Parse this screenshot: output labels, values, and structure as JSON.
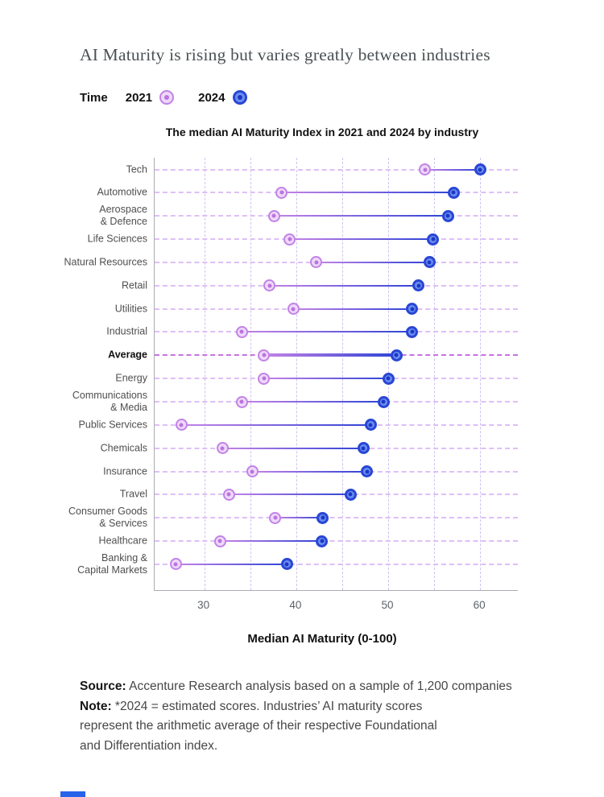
{
  "title": "AI Maturity is rising but varies greatly between industries",
  "legend": {
    "label": "Time",
    "items": [
      {
        "label": "2021",
        "series": "2021"
      },
      {
        "label": "2024",
        "series": "2024"
      }
    ]
  },
  "chart_data": {
    "type": "dumbbell",
    "title": "The median AI Maturity Index in 2021 and 2024 by industry",
    "xlabel": "Median AI Maturity (0-100)",
    "xlim": [
      24.6,
      64.1
    ],
    "xticks": [
      30,
      40,
      50,
      60
    ],
    "gridlines": [
      30,
      35,
      40,
      45,
      50,
      55,
      60
    ],
    "grid": "dashed",
    "legend_position": "top-left",
    "series": [
      "2021",
      "2024"
    ],
    "rows": [
      {
        "label": [
          "Tech"
        ],
        "v2021": 54.0,
        "v2024": 60.0,
        "bold": false
      },
      {
        "label": [
          "Automotive"
        ],
        "v2021": 38.4,
        "v2024": 57.1,
        "bold": false
      },
      {
        "label": [
          "Aerospace",
          "& Defence"
        ],
        "v2021": 37.6,
        "v2024": 56.5,
        "bold": false
      },
      {
        "label": [
          "Life Sciences"
        ],
        "v2021": 39.3,
        "v2024": 54.9,
        "bold": false
      },
      {
        "label": [
          "Natural Resources"
        ],
        "v2021": 42.2,
        "v2024": 54.5,
        "bold": false
      },
      {
        "label": [
          "Retail"
        ],
        "v2021": 37.1,
        "v2024": 53.3,
        "bold": false
      },
      {
        "label": [
          "Utilities"
        ],
        "v2021": 39.7,
        "v2024": 52.6,
        "bold": false
      },
      {
        "label": [
          "Industrial"
        ],
        "v2021": 34.1,
        "v2024": 52.6,
        "bold": false
      },
      {
        "label": [
          "Average"
        ],
        "v2021": 36.5,
        "v2024": 50.9,
        "bold": true
      },
      {
        "label": [
          "Energy"
        ],
        "v2021": 36.5,
        "v2024": 50.0,
        "bold": false
      },
      {
        "label": [
          "Communications",
          "& Media"
        ],
        "v2021": 34.1,
        "v2024": 49.5,
        "bold": false
      },
      {
        "label": [
          "Public Services"
        ],
        "v2021": 27.5,
        "v2024": 48.1,
        "bold": false
      },
      {
        "label": [
          "Chemicals"
        ],
        "v2021": 32.0,
        "v2024": 47.3,
        "bold": false
      },
      {
        "label": [
          "Insurance"
        ],
        "v2021": 35.2,
        "v2024": 47.7,
        "bold": false
      },
      {
        "label": [
          "Travel"
        ],
        "v2021": 32.7,
        "v2024": 45.9,
        "bold": false
      },
      {
        "label": [
          "Consumer Goods",
          "& Services"
        ],
        "v2021": 37.7,
        "v2024": 42.9,
        "bold": false
      },
      {
        "label": [
          "Healthcare"
        ],
        "v2021": 31.7,
        "v2024": 42.8,
        "bold": false
      },
      {
        "label": [
          "Banking &",
          "Capital Markets"
        ],
        "v2021": 26.9,
        "v2024": 39.0,
        "bold": false
      }
    ]
  },
  "footer": {
    "source_label": "Source:",
    "source_text": " Accenture Research analysis based on a sample of 1,200 companies",
    "note_label": "Note:",
    "note_line1": " *2024 = estimated scores. Industries’ AI maturity scores",
    "note_line2": "represent the arithmetic average of their respective Foundational",
    "note_line3": "and Differentiation index.",
    "accent_bar_color": "#2563eb"
  },
  "colors": {
    "c2021_ring": "#c183e6",
    "c2021_fill": "#eed8fa",
    "c2021_dot": "#bb74de",
    "c2024_ring": "#2a46d4",
    "c2024_fill": "#6b90f2",
    "c2024_dot": "#1e36c2",
    "line_start": "#c683e6",
    "line_end": "#2e44d6",
    "row_line": "#ddbff6",
    "avg_row_line": "#c873e2",
    "grid_line": "#cfc2f0",
    "axis": "#a9acb1"
  }
}
